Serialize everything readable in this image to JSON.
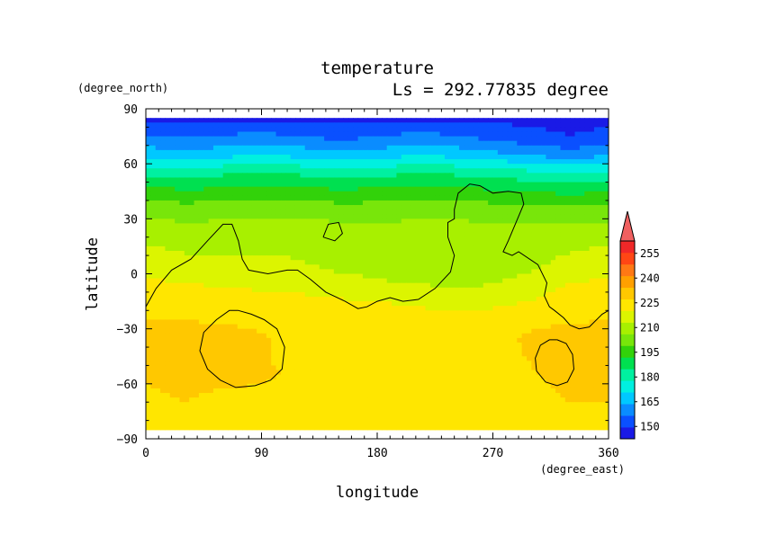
{
  "chart_data": {
    "type": "heatmap",
    "title": "temperature",
    "subtitle": "Ls = 292.77835 degree",
    "xlabel": "longitude",
    "ylabel": "latitude",
    "x_units": "(degree_east)",
    "y_units": "(degree_north)",
    "xlim": [
      0,
      360
    ],
    "ylim": [
      -90,
      90
    ],
    "x_ticks": [
      "0",
      "90",
      "180",
      "270",
      "360"
    ],
    "y_ticks": [
      "90",
      "60",
      "30",
      "0",
      "−30",
      "−60",
      "−90"
    ],
    "x_tick_values": [
      0,
      90,
      180,
      270,
      360
    ],
    "y_tick_values": [
      90,
      60,
      30,
      0,
      -30,
      -60,
      -90
    ],
    "colorbar": {
      "levels": [
        142.5,
        150,
        157.5,
        165,
        172.5,
        180,
        187.5,
        195,
        202.5,
        210,
        217.5,
        225,
        232.5,
        240,
        247.5,
        255,
        262.5
      ],
      "labels": [
        "150",
        "165",
        "180",
        "195",
        "210",
        "225",
        "240",
        "255"
      ],
      "label_values": [
        150,
        165,
        180,
        195,
        210,
        225,
        240,
        255
      ],
      "colors": [
        "#1a1ae6",
        "#0a50ff",
        "#0a8cff",
        "#00c8ff",
        "#00f0e0",
        "#00f0a0",
        "#00e050",
        "#32d20a",
        "#78e60a",
        "#a8f000",
        "#dcf500",
        "#ffe600",
        "#ffc800",
        "#ffa000",
        "#ff7814",
        "#ff4614",
        "#f02828"
      ],
      "extend_colors": {
        "below": "#0000c8",
        "above": "#f06060"
      }
    },
    "grid": false,
    "legend": "right colorbar",
    "field": {
      "lat": [
        85,
        75,
        65,
        55,
        45,
        35,
        25,
        15,
        5,
        -5,
        -15,
        -25,
        -35,
        -45,
        -55,
        -65,
        -75,
        -85
      ],
      "lon": [
        0,
        30,
        60,
        90,
        120,
        150,
        180,
        210,
        240,
        270,
        300,
        330,
        360
      ],
      "values": [
        [
          148,
          148,
          148,
          148,
          148,
          148,
          148,
          148,
          148,
          148,
          148,
          148,
          148
        ],
        [
          158,
          156,
          158,
          160,
          157,
          155,
          157,
          160,
          158,
          155,
          152,
          150,
          152
        ],
        [
          170,
          168,
          170,
          172,
          170,
          168,
          168,
          172,
          170,
          167,
          164,
          161,
          164
        ],
        [
          186,
          184,
          186,
          188,
          186,
          184,
          185,
          187,
          186,
          184,
          182,
          180,
          182
        ],
        [
          198,
          196,
          197,
          199,
          198,
          196,
          197,
          199,
          198,
          196,
          195,
          193,
          195
        ],
        [
          207,
          206,
          207,
          208,
          207,
          206,
          206,
          207,
          207,
          206,
          205,
          204,
          205
        ],
        [
          213,
          212,
          212,
          213,
          213,
          212,
          212,
          212,
          212,
          212,
          212,
          211,
          212
        ],
        [
          218,
          216,
          215,
          216,
          216,
          215,
          215,
          214,
          214,
          214,
          215,
          216,
          218
        ],
        [
          222,
          220,
          219,
          220,
          218,
          216,
          216,
          215,
          214,
          214,
          216,
          220,
          222
        ],
        [
          226,
          225,
          224,
          223,
          222,
          219,
          218,
          217,
          216,
          217,
          220,
          225,
          226
        ],
        [
          230,
          229,
          228,
          228,
          227,
          226,
          225,
          224,
          222,
          223,
          225,
          229,
          230
        ],
        [
          232,
          232,
          231,
          231,
          230,
          229,
          228,
          228,
          227,
          228,
          230,
          231,
          232
        ],
        [
          236,
          240,
          236,
          233,
          231,
          230,
          229,
          229,
          229,
          230,
          234,
          238,
          240
        ],
        [
          234,
          238,
          236,
          233,
          231,
          229,
          229,
          229,
          229,
          230,
          233,
          237,
          238
        ],
        [
          233,
          235,
          234,
          233,
          232,
          230,
          229,
          229,
          229,
          230,
          232,
          234,
          235
        ],
        [
          232,
          233,
          232,
          232,
          231,
          230,
          229,
          229,
          229,
          230,
          231,
          233,
          233
        ],
        [
          231,
          232,
          231,
          231,
          230,
          229,
          229,
          229,
          229,
          229,
          230,
          232,
          232
        ],
        [
          229,
          230,
          230,
          229,
          229,
          229,
          229,
          229,
          229,
          229,
          229,
          230,
          230
        ]
      ]
    },
    "topography_contours": [
      [
        [
          0,
          -18
        ],
        [
          8,
          -8
        ],
        [
          20,
          2
        ],
        [
          35,
          8
        ],
        [
          48,
          18
        ],
        [
          60,
          27
        ],
        [
          67,
          27
        ],
        [
          72,
          18
        ],
        [
          75,
          8
        ],
        [
          80,
          2
        ],
        [
          95,
          0
        ],
        [
          110,
          2
        ],
        [
          118,
          2
        ],
        [
          128,
          -3
        ],
        [
          140,
          -10
        ],
        [
          155,
          -15
        ],
        [
          165,
          -19
        ],
        [
          172,
          -18
        ],
        [
          180,
          -15
        ],
        [
          190,
          -13
        ],
        [
          200,
          -15
        ],
        [
          212,
          -14
        ],
        [
          225,
          -8
        ],
        [
          237,
          1
        ],
        [
          240,
          10
        ],
        [
          235,
          20
        ],
        [
          235,
          28
        ],
        [
          240,
          30
        ],
        [
          240,
          35
        ],
        [
          243,
          44
        ],
        [
          252,
          49
        ],
        [
          260,
          48
        ],
        [
          270,
          44
        ],
        [
          282,
          45
        ],
        [
          292,
          44
        ],
        [
          294,
          38
        ],
        [
          288,
          28
        ],
        [
          282,
          18
        ],
        [
          278,
          12
        ],
        [
          285,
          10
        ],
        [
          290,
          12
        ],
        [
          305,
          5
        ],
        [
          312,
          -5
        ],
        [
          310,
          -12
        ],
        [
          314,
          -18
        ],
        [
          318,
          -20
        ],
        [
          325,
          -24
        ],
        [
          330,
          -28
        ],
        [
          337,
          -30
        ],
        [
          345,
          -29
        ],
        [
          355,
          -22
        ],
        [
          360,
          -20
        ]
      ],
      [
        [
          138,
          20
        ],
        [
          147,
          18
        ],
        [
          153,
          22
        ],
        [
          150,
          28
        ],
        [
          142,
          27
        ],
        [
          138,
          20
        ]
      ],
      [
        [
          72,
          -20
        ],
        [
          82,
          -22
        ],
        [
          92,
          -25
        ],
        [
          102,
          -30
        ],
        [
          108,
          -40
        ],
        [
          106,
          -52
        ],
        [
          97,
          -58
        ],
        [
          85,
          -61
        ],
        [
          70,
          -62
        ],
        [
          58,
          -58
        ],
        [
          48,
          -52
        ],
        [
          42,
          -42
        ],
        [
          45,
          -32
        ],
        [
          55,
          -25
        ],
        [
          65,
          -20
        ],
        [
          72,
          -20
        ]
      ],
      [
        [
          320,
          -36
        ],
        [
          327,
          -38
        ],
        [
          332,
          -44
        ],
        [
          333,
          -52
        ],
        [
          328,
          -59
        ],
        [
          320,
          -61
        ],
        [
          311,
          -59
        ],
        [
          304,
          -53
        ],
        [
          303,
          -46
        ],
        [
          307,
          -39
        ],
        [
          314,
          -36
        ],
        [
          320,
          -36
        ]
      ]
    ]
  }
}
